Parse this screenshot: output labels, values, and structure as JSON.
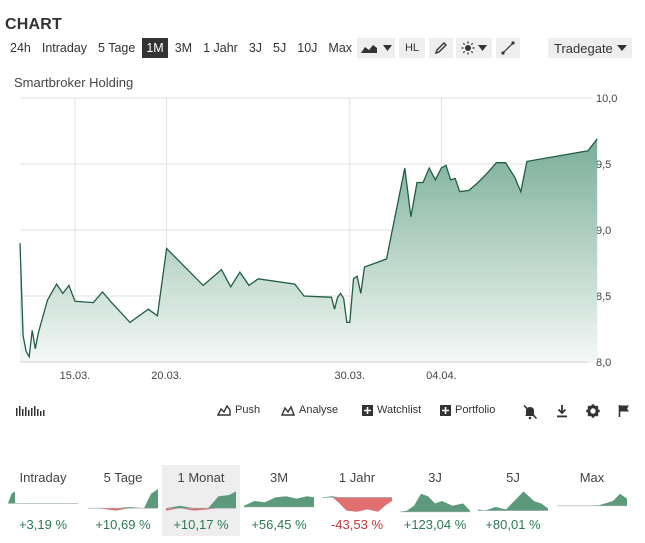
{
  "header": {
    "title": "CHART"
  },
  "ranges": [
    {
      "label": "24h",
      "active": false
    },
    {
      "label": "Intraday",
      "active": false
    },
    {
      "label": "5 Tage",
      "active": false
    },
    {
      "label": "1M",
      "active": true
    },
    {
      "label": "3M",
      "active": false
    },
    {
      "label": "1 Jahr",
      "active": false
    },
    {
      "label": "3J",
      "active": false
    },
    {
      "label": "5J",
      "active": false
    },
    {
      "label": "10J",
      "active": false
    },
    {
      "label": "Max",
      "active": false
    }
  ],
  "toolbar": {
    "hl_label": "HL",
    "exchange": "Tradegate"
  },
  "actions": {
    "push": "Push",
    "analyse": "Analyse",
    "watchlist": "Watchlist",
    "portfolio": "Portfolio"
  },
  "colors": {
    "line": "#1f5e43",
    "fill_top": "#7aae98",
    "fill_bottom": "#f4f8f6",
    "positive": "#2b7a55",
    "negative": "#c0393b",
    "active_bg": "#333333",
    "tool_bg": "#eeeeee"
  },
  "chart_data": {
    "type": "area",
    "title": "Smartbroker Holding",
    "ylim": [
      8.0,
      10.0
    ],
    "y_ticks": [
      "10,0",
      "9,5",
      "9,0",
      "8,5",
      "8,0"
    ],
    "x_ticks": [
      "15.03.",
      "20.03.",
      "30.03.",
      "04.04."
    ],
    "grid": true,
    "points": [
      [
        "12.03.",
        8.9
      ],
      [
        "12.03.",
        8.2
      ],
      [
        "12.03.",
        8.08
      ],
      [
        "12.03.",
        8.04
      ],
      [
        "12.03.",
        8.24
      ],
      [
        "12.03.",
        8.1
      ],
      [
        "13.03.",
        8.22
      ],
      [
        "13.03.",
        8.47
      ],
      [
        "14.03.",
        8.59
      ],
      [
        "14.03.",
        8.52
      ],
      [
        "14.03.",
        8.58
      ],
      [
        "15.03.",
        8.46
      ],
      [
        "16.03.",
        8.45
      ],
      [
        "16.03.",
        8.53
      ],
      [
        "17.03.",
        8.45
      ],
      [
        "18.03.",
        8.3
      ],
      [
        "19.03.",
        8.4
      ],
      [
        "19.03.",
        8.35
      ],
      [
        "20.03.",
        8.86
      ],
      [
        "22.03.",
        8.58
      ],
      [
        "23.03.",
        8.7
      ],
      [
        "23.03.",
        8.57
      ],
      [
        "24.03.",
        8.68
      ],
      [
        "24.03.",
        8.58
      ],
      [
        "25.03.",
        8.63
      ],
      [
        "27.03.",
        8.59
      ],
      [
        "27.03.",
        8.5
      ],
      [
        "29.03.",
        8.49
      ],
      [
        "29.03.",
        8.4
      ],
      [
        "29.03.",
        8.49
      ],
      [
        "29.03.",
        8.52
      ],
      [
        "29.03.",
        8.48
      ],
      [
        "29.03.",
        8.3
      ],
      [
        "30.03.",
        8.3
      ],
      [
        "30.03.",
        8.63
      ],
      [
        "30.03.",
        8.65
      ],
      [
        "30.03.",
        8.52
      ],
      [
        "30.03.",
        8.72
      ],
      [
        "01.04.",
        8.78
      ],
      [
        "02.04.",
        9.47
      ],
      [
        "02.04.",
        9.1
      ],
      [
        "02.04.",
        9.36
      ],
      [
        "03.04.",
        9.36
      ],
      [
        "03.04.",
        9.47
      ],
      [
        "03.04.",
        9.38
      ],
      [
        "04.04.",
        9.47
      ],
      [
        "04.04.",
        9.49
      ],
      [
        "04.04.",
        9.38
      ],
      [
        "04.04.",
        9.39
      ],
      [
        "05.04.",
        9.29
      ],
      [
        "05.04.",
        9.3
      ],
      [
        "06.04.",
        9.36
      ],
      [
        "06.04.",
        9.43
      ],
      [
        "07.04.",
        9.51
      ],
      [
        "07.04.",
        9.51
      ],
      [
        "08.04.",
        9.4
      ],
      [
        "08.04.",
        9.29
      ],
      [
        "08.04.",
        9.52
      ],
      [
        "12.04.",
        9.6
      ],
      [
        "12.04.",
        9.69
      ]
    ]
  },
  "minis": [
    {
      "label": "Intraday",
      "pct": "+3,19 %",
      "sign": "pos",
      "active": false
    },
    {
      "label": "5 Tage",
      "pct": "+10,69 %",
      "sign": "pos",
      "active": false
    },
    {
      "label": "1 Monat",
      "pct": "+10,17 %",
      "sign": "pos",
      "active": true
    },
    {
      "label": "3M",
      "pct": "+56,45 %",
      "sign": "pos",
      "active": false
    },
    {
      "label": "1 Jahr",
      "pct": "-43,53 %",
      "sign": "neg",
      "active": false
    },
    {
      "label": "3J",
      "pct": "+123,04 %",
      "sign": "pos",
      "active": false
    },
    {
      "label": "5J",
      "pct": "+80,01 %",
      "sign": "pos",
      "active": false
    },
    {
      "label": "Max",
      "pct": "",
      "sign": "pos",
      "active": false
    }
  ]
}
